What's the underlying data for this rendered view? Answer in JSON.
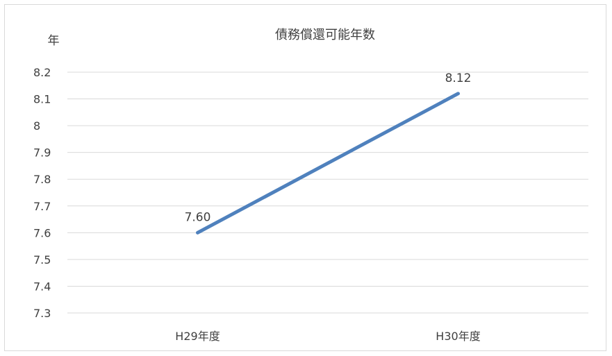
{
  "chart_data": {
    "type": "line",
    "title": "債務償還可能年数",
    "ylabel": "年",
    "xlabel": "",
    "categories": [
      "H29年度",
      "H30年度"
    ],
    "series": [
      {
        "values": [
          7.6,
          8.12
        ],
        "data_labels": [
          "7.60",
          "8.12"
        ],
        "color": "#4f81bd"
      }
    ],
    "ylim": [
      7.3,
      8.2
    ],
    "yticks": [
      "7.3",
      "7.4",
      "7.5",
      "7.6",
      "7.7",
      "7.8",
      "7.9",
      "8",
      "8.1",
      "8.2"
    ],
    "grid": true,
    "legend": "none",
    "colors": {
      "gridline": "#d9d9d9",
      "text": "#404040",
      "frame": "#d9d9d9"
    }
  }
}
